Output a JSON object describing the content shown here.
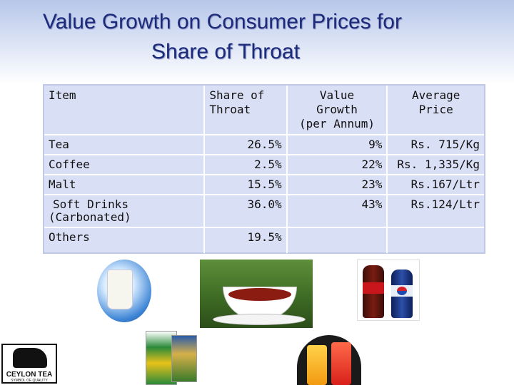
{
  "title": {
    "line1": "Value Growth on Consumer Prices for",
    "line2": "Share of Throat"
  },
  "table": {
    "headers": [
      "Item",
      "Share of Throat",
      "Value Growth (per Annum)",
      "Average Price"
    ],
    "header_lines": {
      "item": "Item",
      "share_1": "Share of",
      "share_2": "Throat",
      "growth_1": "Value",
      "growth_2": "Growth",
      "growth_3": "(per Annum)",
      "price_1": "Average",
      "price_2": "Price"
    },
    "rows": [
      {
        "item": "Tea",
        "share": "26.5%",
        "growth": "9%",
        "price": "Rs. 715/Kg"
      },
      {
        "item": "Coffee",
        "share": "2.5%",
        "growth": "22%",
        "price": "Rs. 1,335/Kg"
      },
      {
        "item": "Malt",
        "share": "15.5%",
        "growth": "23%",
        "price": "Rs.167/Ltr"
      },
      {
        "item_1": "Soft Drinks",
        "item_2": "(Carbonated)",
        "share": "36.0%",
        "growth": "43%",
        "price": "Rs.124/Ltr"
      },
      {
        "item": "Others",
        "share": "19.5%",
        "growth": "",
        "price": ""
      }
    ]
  },
  "logo": {
    "name": "CEYLON TEA",
    "tagline": "SYMBOL OF QUALITY"
  },
  "colors": {
    "title": "#1c2a7a",
    "table_bg": "#d9dff5"
  }
}
